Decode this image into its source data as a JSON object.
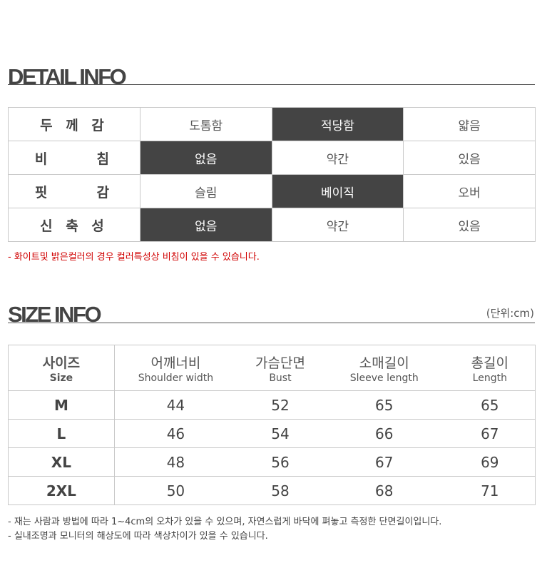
{
  "detail": {
    "title": "DETAIL INFO",
    "rows": [
      {
        "label": "두 께 감",
        "options": [
          "도톰함",
          "적당함",
          "얇음"
        ],
        "selected": 1
      },
      {
        "label": "비     침",
        "options": [
          "없음",
          "약간",
          "있음"
        ],
        "selected": 0
      },
      {
        "label": "핏     감",
        "options": [
          "슬림",
          "베이직",
          "오버"
        ],
        "selected": 1
      },
      {
        "label": "신 축 성",
        "options": [
          "없음",
          "약간",
          "있음"
        ],
        "selected": 0
      }
    ],
    "note": "- 화이트및 밝은컬러의 경우 컬러특성상 비침이 있을 수 있습니다.",
    "note_color": "#d00000",
    "selected_color": "#444444"
  },
  "size": {
    "title": "SIZE INFO",
    "unit": "(단위:cm)",
    "headers": [
      {
        "ko": "사이즈",
        "en": "Size"
      },
      {
        "ko": "어깨너비",
        "en": "Shoulder width"
      },
      {
        "ko": "가슴단면",
        "en": "Bust"
      },
      {
        "ko": "소매길이",
        "en": "Sleeve length"
      },
      {
        "ko": "총길이",
        "en": "Length"
      }
    ],
    "rows": [
      [
        "M",
        "44",
        "52",
        "65",
        "65"
      ],
      [
        "L",
        "46",
        "54",
        "66",
        "67"
      ],
      [
        "XL",
        "48",
        "56",
        "67",
        "69"
      ],
      [
        "2XL",
        "50",
        "58",
        "68",
        "71"
      ]
    ],
    "notes": [
      "- 재는 사람과 방법에 따라 1~4cm의 오차가 있을 수 있으며, 자연스럽게 바닥에 펴놓고 측정한 단면길이입니다.",
      "- 실내조명과 모니터의 해상도에 따라 색상차이가 있을 수 있습니다."
    ]
  }
}
